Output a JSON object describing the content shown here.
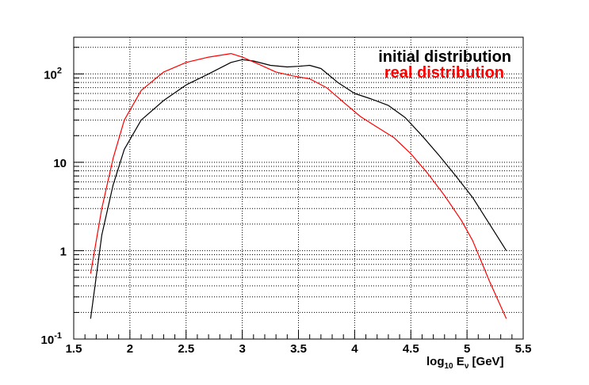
{
  "chart_data": {
    "type": "line",
    "xlabel": {
      "main": "log",
      "sub1": "10",
      "mid": " E",
      "sub2": "ν",
      "tail": " [GeV]"
    },
    "ylabel": "",
    "xlim": [
      1.5,
      5.5
    ],
    "ylim": [
      0.1,
      260
    ],
    "yscale": "log",
    "grid": true,
    "legend_position": "top-right",
    "x_ticks": [
      "1.5",
      "2",
      "2.5",
      "3",
      "3.5",
      "4",
      "4.5",
      "5",
      "5.5"
    ],
    "y_ticks": [
      {
        "value": 0.1,
        "base": "10",
        "exp": "-1"
      },
      {
        "value": 1,
        "base": "1",
        "exp": ""
      },
      {
        "value": 10,
        "base": "10",
        "exp": ""
      },
      {
        "value": 100,
        "base": "10",
        "exp": "2"
      }
    ],
    "series": [
      {
        "name": "initial distribution",
        "color": "#000000",
        "points": [
          [
            1.65,
            0.17
          ],
          [
            1.75,
            1.5
          ],
          [
            1.85,
            5.5
          ],
          [
            1.95,
            14
          ],
          [
            2.1,
            30
          ],
          [
            2.3,
            50
          ],
          [
            2.5,
            75
          ],
          [
            2.7,
            100
          ],
          [
            2.9,
            135
          ],
          [
            3.0,
            145
          ],
          [
            3.1,
            140
          ],
          [
            3.25,
            125
          ],
          [
            3.4,
            120
          ],
          [
            3.5,
            122
          ],
          [
            3.6,
            125
          ],
          [
            3.7,
            115
          ],
          [
            3.85,
            80
          ],
          [
            4.0,
            60
          ],
          [
            4.15,
            52
          ],
          [
            4.3,
            44
          ],
          [
            4.45,
            32
          ],
          [
            4.6,
            20
          ],
          [
            4.75,
            12
          ],
          [
            4.9,
            7
          ],
          [
            5.05,
            4
          ],
          [
            5.2,
            2
          ],
          [
            5.35,
            1.0
          ]
        ]
      },
      {
        "name": "real distribution",
        "color": "#ff0000",
        "points": [
          [
            1.65,
            0.55
          ],
          [
            1.75,
            3
          ],
          [
            1.85,
            11
          ],
          [
            1.95,
            30
          ],
          [
            2.1,
            65
          ],
          [
            2.3,
            105
          ],
          [
            2.5,
            135
          ],
          [
            2.7,
            155
          ],
          [
            2.9,
            170
          ],
          [
            3.0,
            155
          ],
          [
            3.15,
            128
          ],
          [
            3.3,
            105
          ],
          [
            3.45,
            95
          ],
          [
            3.6,
            88
          ],
          [
            3.75,
            70
          ],
          [
            3.9,
            48
          ],
          [
            4.05,
            33
          ],
          [
            4.2,
            25
          ],
          [
            4.35,
            19
          ],
          [
            4.5,
            12.5
          ],
          [
            4.65,
            7.5
          ],
          [
            4.8,
            4.2
          ],
          [
            4.95,
            2.2
          ],
          [
            5.05,
            1.3
          ],
          [
            5.2,
            0.45
          ],
          [
            5.35,
            0.17
          ]
        ]
      }
    ]
  }
}
